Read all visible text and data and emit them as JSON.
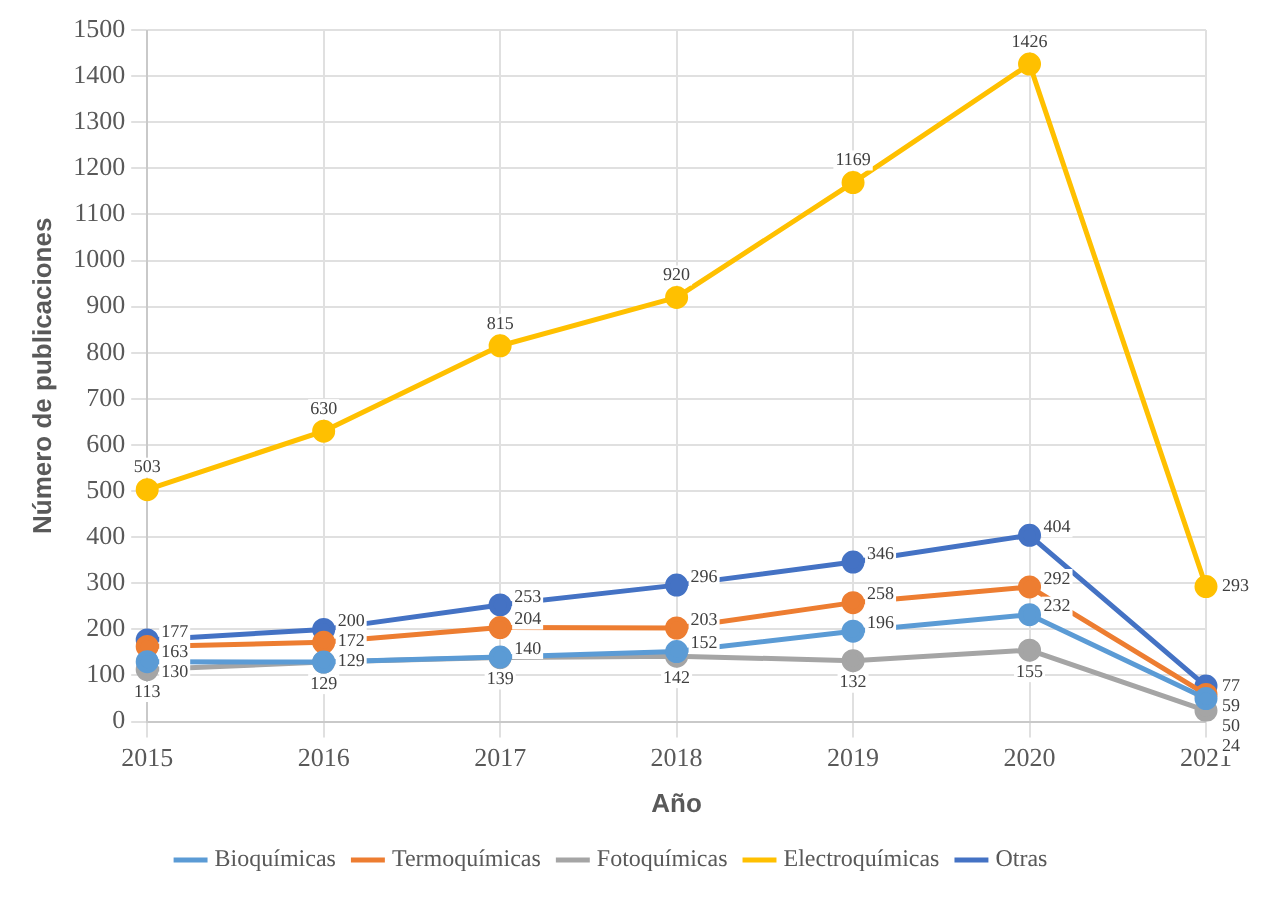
{
  "chart_data": {
    "type": "line",
    "xlabel": "Año",
    "ylabel": "Número de publicaciones",
    "categories": [
      "2015",
      "2016",
      "2017",
      "2018",
      "2019",
      "2020",
      "2021"
    ],
    "series": [
      {
        "name": "Bioquímicas",
        "color": "#5b9bd5",
        "values": [
          130,
          129,
          140,
          152,
          196,
          232,
          50
        ]
      },
      {
        "name": "Termoquímicas",
        "color": "#ed7d31",
        "values": [
          163,
          172,
          204,
          203,
          258,
          292,
          59
        ]
      },
      {
        "name": "Fotoquímicas",
        "color": "#a5a5a5",
        "values": [
          113,
          129,
          139,
          142,
          132,
          155,
          24
        ]
      },
      {
        "name": "Electroquímicas",
        "color": "#ffc000",
        "values": [
          503,
          630,
          815,
          920,
          1169,
          1426,
          293
        ]
      },
      {
        "name": "Otras",
        "color": "#4472c4",
        "values": [
          177,
          200,
          253,
          296,
          346,
          404,
          77
        ]
      }
    ],
    "ylim": [
      0,
      1500
    ],
    "yticks": [
      0,
      100,
      200,
      300,
      400,
      500,
      600,
      700,
      800,
      900,
      1000,
      1100,
      1200,
      1300,
      1400,
      1500
    ],
    "grid": true,
    "legend": "bottom",
    "marker": "circle",
    "line_style": "solid",
    "data_labels": true
  }
}
